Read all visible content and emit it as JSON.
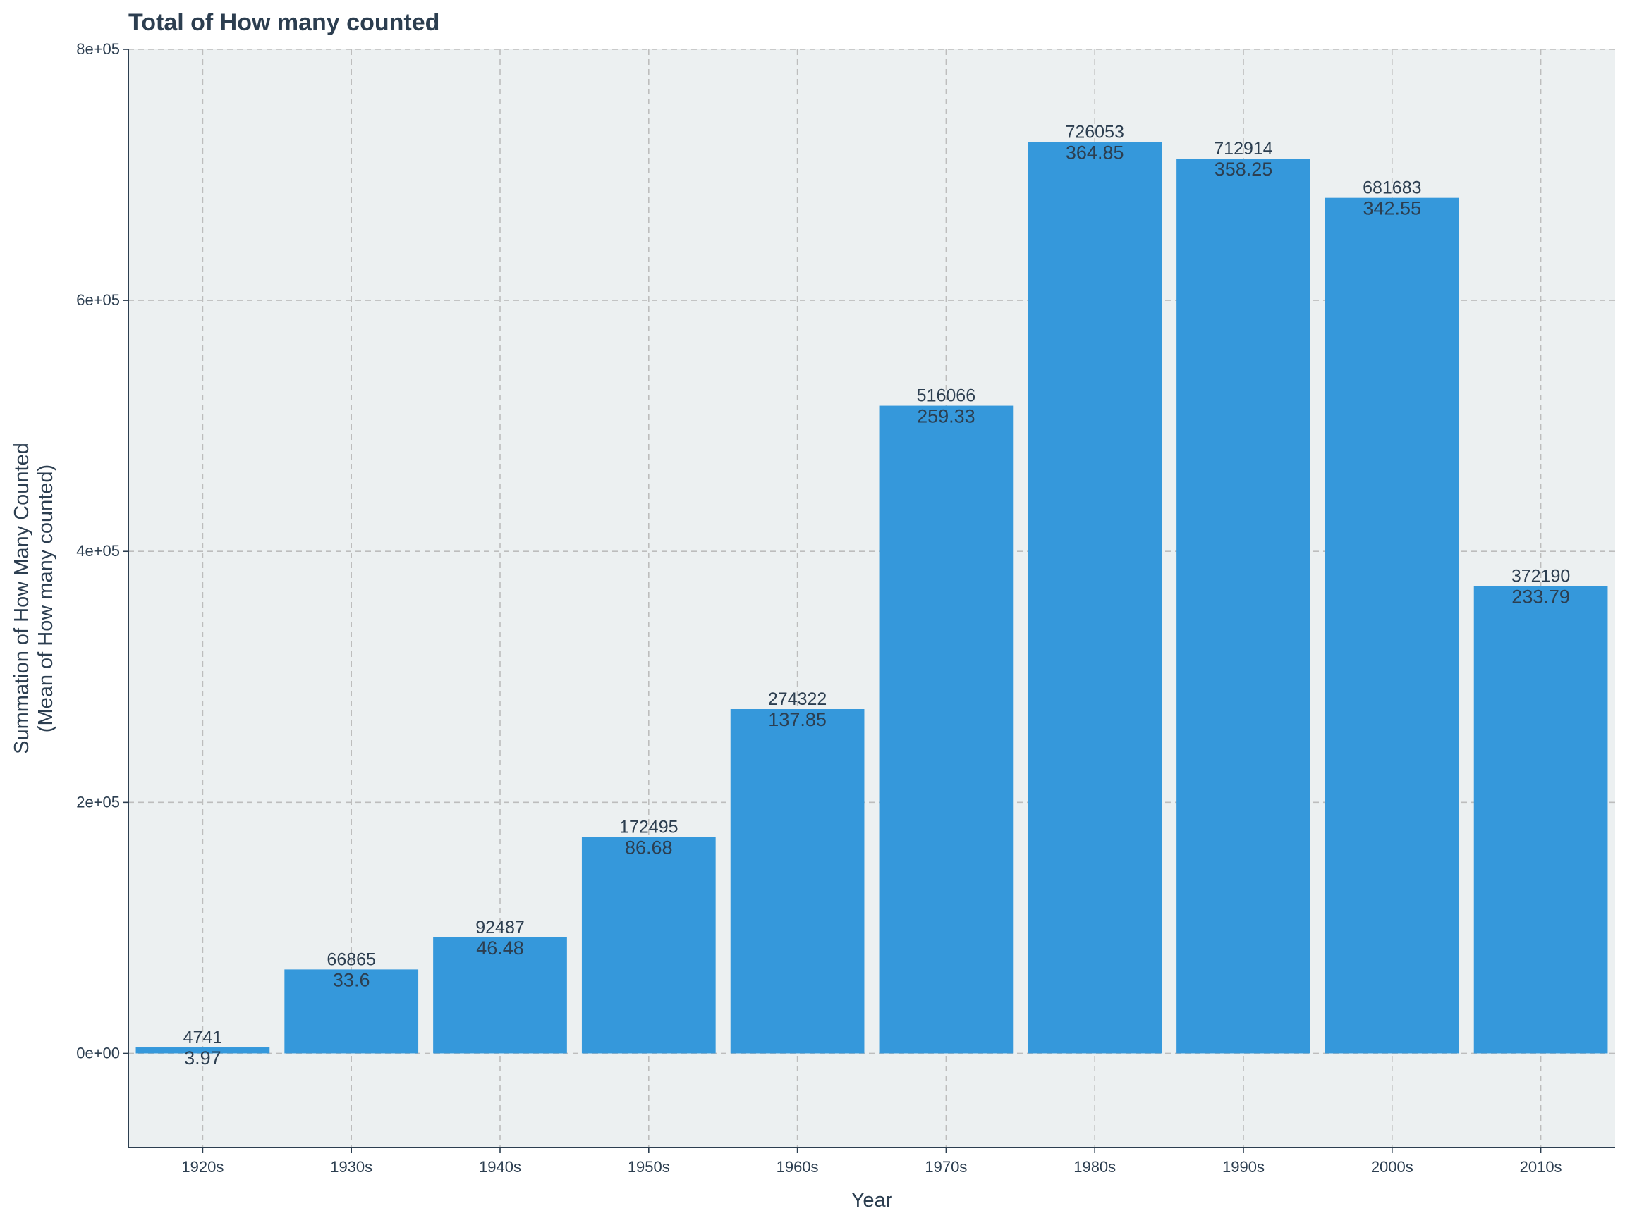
{
  "chart_data": {
    "type": "bar",
    "title": "Total of How many counted",
    "xlabel": "Year",
    "ylabel": [
      "Summation of How Many Counted",
      "(Mean of How many counted)"
    ],
    "categories": [
      "1920s",
      "1930s",
      "1940s",
      "1950s",
      "1960s",
      "1970s",
      "1980s",
      "1990s",
      "2000s",
      "2010s"
    ],
    "values": [
      4741,
      66865,
      92487,
      172495,
      274322,
      516066,
      726053,
      712914,
      681683,
      372190
    ],
    "sum_labels": [
      "4741",
      "66865",
      "92487",
      "172495",
      "274322",
      "516066",
      "726053",
      "712914",
      "681683",
      "372190"
    ],
    "mean_labels": [
      "3.97",
      "33.6",
      "46.48",
      "86.68",
      "137.85",
      "259.33",
      "364.85",
      "358.25",
      "342.55",
      "233.79"
    ],
    "ylim": [
      -75000,
      800000
    ],
    "yticks": [
      0,
      200000,
      400000,
      600000,
      800000
    ],
    "ytick_labels": [
      "0e+00",
      "2e+05",
      "4e+05",
      "6e+05",
      "8e+05"
    ],
    "grid": true,
    "colors": {
      "bar": "#3598db",
      "panel": "#ecf0f1",
      "text": "#2c3e50",
      "grid": "#bdbdbd"
    }
  }
}
